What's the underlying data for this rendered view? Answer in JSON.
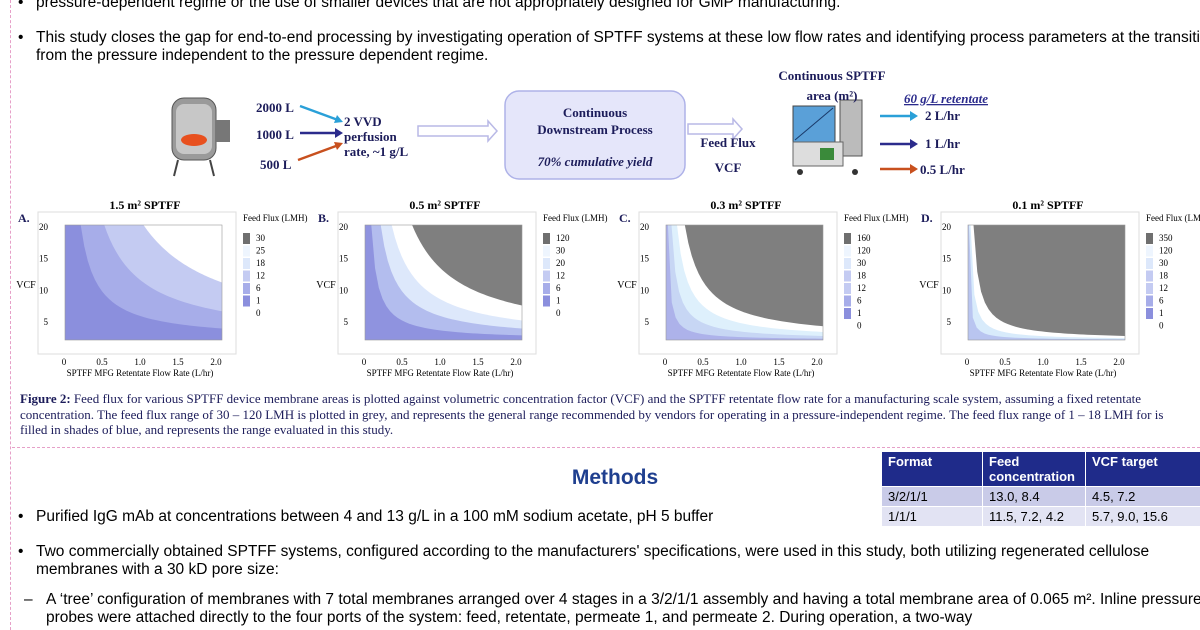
{
  "intro": {
    "bullets": [
      "pressure-dependent regime or the use of smaller devices that are not appropriately designed for GMP manufacturing.",
      "This study closes the gap for end-to-end processing by investigating operation of SPTFF systems at these low flow rates and identifying process parameters at the transition from the pressure independent to the pressure dependent regime."
    ]
  },
  "diagram": {
    "volumes": [
      "2000 L",
      "1000 L",
      "500 L"
    ],
    "perfusion": "2 VVD perfusion rate, ~1 g/L",
    "downstream_title": "Continuous Downstream Process",
    "downstream_yield": "70% cumulative yield",
    "feed_flux": "Feed Flux",
    "vcf": "VCF",
    "sptff_area": "Continuous SPTFF area (m²)",
    "retentate": "60 g/L retentate",
    "rates": [
      "2 L/hr",
      "1 L/hr",
      "0.5 L/hr"
    ]
  },
  "figure": {
    "y_label": "VCF",
    "x_label": "SPTFF MFG Retentate Flow Rate (L/hr)",
    "legend_title": "Feed Flux (LMH)",
    "yticks": [
      "5",
      "10",
      "15",
      "20"
    ],
    "xticks": [
      "0",
      "0.5",
      "1.0",
      "1.5",
      "2.0"
    ],
    "panels": [
      {
        "letter": "A.",
        "title": "1.5 m² SPTFF",
        "legend_values": [
          "30",
          "25",
          "18",
          "12",
          "6",
          "1",
          "0"
        ]
      },
      {
        "letter": "B.",
        "title": "0.5 m² SPTFF",
        "legend_values": [
          "120",
          "30",
          "20",
          "12",
          "6",
          "1",
          "0"
        ]
      },
      {
        "letter": "C.",
        "title": "0.3 m² SPTFF",
        "legend_values": [
          "160",
          "120",
          "30",
          "18",
          "12",
          "6",
          "1",
          "0"
        ]
      },
      {
        "letter": "D.",
        "title": "0.1 m² SPTFF",
        "legend_values": [
          "350",
          "120",
          "30",
          "18",
          "12",
          "6",
          "1",
          "0"
        ]
      }
    ],
    "caption_label": "Figure 2:",
    "caption": "Feed flux for various SPTFF device membrane areas is plotted against volumetric concentration factor (VCF) and the SPTFF retentate flow rate for a manufacturing scale system, assuming a fixed retentate concentration. The feed flux range of 30 – 120 LMH is plotted in grey, and represents the general range recommended by vendors for operating in a pressure-independent regime. The feed flux range of 1 – 18 LMH for is filled in shades of blue, and represents the range evaluated in this study."
  },
  "methods": {
    "heading": "Methods",
    "table": {
      "header": [
        "Format",
        "Feed concentration",
        "VCF target"
      ],
      "rows": [
        [
          "3/2/1/1",
          "13.0, 8.4",
          "4.5, 7.2"
        ],
        [
          "1/1/1",
          "11.5, 7.2, 4.2",
          "5.7, 9.0, 15.6"
        ]
      ]
    },
    "bullets": [
      "Purified IgG mAb at concentrations between 4 and 13 g/L in a 100 mM sodium acetate, pH 5 buffer",
      "Two commercially obtained SPTFF systems, configured according to the manufacturers' specifications, were used in this study, both utilizing regenerated cellulose membranes with a 30 kD pore size:"
    ],
    "sub_bullets": [
      "A ‘tree’ configuration of membranes with 7 total membranes arranged over 4 stages in a 3/2/1/1 assembly and having a total membrane area of 0.065 m². Inline pressure probes were attached directly to the four ports of the system: feed, retentate, permeate 1, and permeate 2. During operation, a two-way"
    ]
  }
}
